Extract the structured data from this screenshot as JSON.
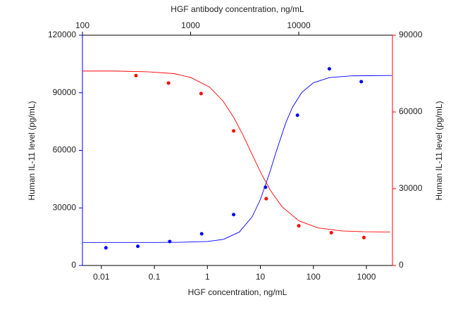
{
  "chart_data": {
    "type": "scatter",
    "x_label": "HGF concentration, ng/mL",
    "x2_label": "HGF antibody concentration, ng/mL",
    "y_label": "Human IL-11 level (pg/mL)",
    "y2_label": "Human IL-11 level (pg/mL)",
    "xscale": "log",
    "x2scale": "log",
    "xlim": [
      0.0044,
      3100
    ],
    "xticks": [
      0.01,
      0.1,
      1,
      10,
      100,
      1000
    ],
    "x2lim": [
      100,
      73500
    ],
    "x2ticks": [
      100,
      1000,
      10000
    ],
    "ylim": [
      0,
      120000
    ],
    "yticks": [
      0,
      30000,
      60000,
      90000,
      120000
    ],
    "y2lim": [
      0,
      90000
    ],
    "y2ticks": [
      0,
      30000,
      60000,
      90000
    ],
    "left_axis_color": "#0000ff",
    "right_axis_color": "#ff0000",
    "series": [
      {
        "color": "#0000ff",
        "mode": "markers",
        "axis": "y",
        "xaxis": "x",
        "x": [
          0.0122,
          0.0488,
          0.195,
          0.781,
          3.125,
          12.5,
          50,
          200,
          800
        ],
        "values": [
          9200,
          10000,
          12500,
          16500,
          26500,
          40800,
          78300,
          102500,
          95800
        ]
      },
      {
        "color": "#ff0000",
        "mode": "markers",
        "axis": "y2",
        "xaxis": "x2",
        "x": [
          312.5,
          625,
          1250,
          2500,
          5000,
          10000,
          20000,
          40000
        ],
        "values": [
          74200,
          71300,
          67200,
          52600,
          26100,
          15500,
          12800,
          10900
        ]
      },
      {
        "color": "#0000ff",
        "mode": "line",
        "axis": "y",
        "xaxis": "x",
        "x": [
          0.0045,
          0.01,
          0.03,
          0.1,
          0.3,
          1,
          2,
          4,
          7,
          10,
          15,
          20,
          30,
          40,
          60,
          100,
          200,
          500,
          1000,
          3000
        ],
        "values": [
          12000,
          12000,
          12000,
          12000,
          12100,
          12500,
          13600,
          17400,
          25400,
          34400,
          48400,
          59600,
          74200,
          82300,
          90100,
          95200,
          97900,
          98800,
          98900,
          99000
        ]
      },
      {
        "color": "#ff0000",
        "mode": "line",
        "axis": "y2",
        "xaxis": "x2",
        "x": [
          100,
          200,
          400,
          700,
          1000,
          1500,
          2000,
          2500,
          3000,
          3600,
          4500,
          5500,
          7000,
          10000,
          15000,
          25000,
          40000,
          70000
        ],
        "values": [
          76000,
          76000,
          75700,
          75000,
          73500,
          69700,
          64200,
          57900,
          51600,
          44500,
          35900,
          29200,
          23000,
          17500,
          14700,
          13500,
          13200,
          13100
        ]
      }
    ]
  }
}
